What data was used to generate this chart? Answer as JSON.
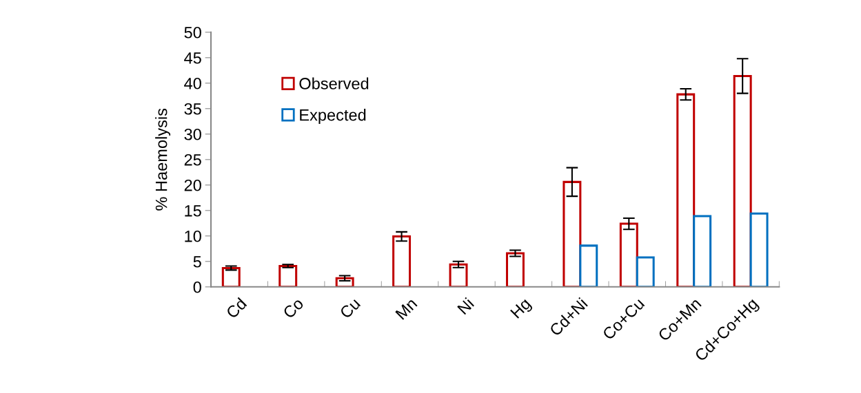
{
  "chart_data": {
    "type": "bar",
    "ylabel": "% Haemolysis",
    "categories": [
      "Cd",
      "Co",
      "Cu",
      "Mn",
      "Ni",
      "Hg",
      "Cd+Ni",
      "Co+Cu",
      "Co+Mn",
      "Cd+Co+Hg"
    ],
    "series": [
      {
        "name": "Observed",
        "color": "#c00000",
        "values": [
          3.7,
          4.1,
          1.7,
          9.9,
          4.4,
          6.6,
          20.6,
          12.4,
          37.8,
          41.4
        ],
        "errors": [
          0.4,
          0.3,
          0.5,
          0.9,
          0.6,
          0.6,
          2.8,
          1.1,
          1.1,
          3.4
        ]
      },
      {
        "name": "Expected",
        "color": "#0070c0",
        "values": [
          null,
          null,
          null,
          null,
          null,
          null,
          8.1,
          5.8,
          13.9,
          14.4
        ]
      }
    ],
    "ylim": [
      0,
      50
    ],
    "yticks": [
      0,
      5,
      10,
      15,
      20,
      25,
      30,
      35,
      40,
      45,
      50
    ],
    "grid": false,
    "legend": "top left"
  }
}
